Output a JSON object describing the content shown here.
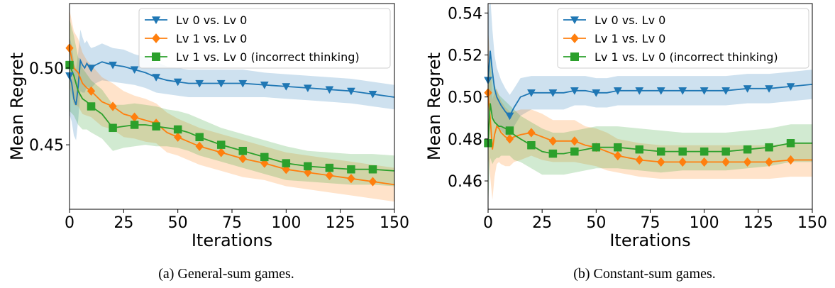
{
  "chart_data": [
    {
      "type": "line",
      "caption": "(a) General-sum games.",
      "xlabel": "Iterations",
      "ylabel": "Mean Regret",
      "xlim": [
        0,
        150
      ],
      "ylim": [
        0.408,
        0.542
      ],
      "xticks": [
        0,
        25,
        50,
        75,
        100,
        125,
        150
      ],
      "yticks": [
        0.45,
        0.5
      ],
      "ytick_labels": [
        "0.45",
        "0.50"
      ],
      "legend_position": "top-right",
      "grid": false,
      "series": [
        {
          "name": "Lv 0 vs. Lv 0",
          "color": "#1f77b4",
          "marker": "triangle-down",
          "x": [
            0,
            1,
            2,
            3,
            4,
            5,
            6,
            7,
            8,
            9,
            10,
            12,
            15,
            20,
            25,
            30,
            35,
            40,
            45,
            50,
            55,
            60,
            70,
            80,
            90,
            100,
            110,
            120,
            130,
            140,
            150
          ],
          "y": [
            0.495,
            0.49,
            0.48,
            0.476,
            0.488,
            0.505,
            0.502,
            0.5,
            0.503,
            0.501,
            0.5,
            0.502,
            0.504,
            0.502,
            0.501,
            0.499,
            0.497,
            0.494,
            0.492,
            0.491,
            0.49,
            0.49,
            0.49,
            0.49,
            0.489,
            0.488,
            0.487,
            0.486,
            0.485,
            0.483,
            0.481
          ],
          "band": [
            0.025,
            0.025,
            0.024,
            0.023,
            0.022,
            0.02,
            0.018,
            0.016,
            0.015,
            0.014,
            0.013,
            0.012,
            0.012,
            0.011,
            0.011,
            0.01,
            0.01,
            0.01,
            0.009,
            0.009,
            0.009,
            0.009,
            0.009,
            0.009,
            0.008,
            0.008,
            0.008,
            0.008,
            0.008,
            0.008,
            0.008
          ],
          "marker_x": [
            0,
            10,
            20,
            30,
            40,
            50,
            60,
            70,
            80,
            90,
            100,
            110,
            120,
            130,
            140
          ]
        },
        {
          "name": "Lv 1 vs. Lv 0",
          "color": "#ff7f0e",
          "marker": "diamond",
          "x": [
            0,
            2,
            4,
            6,
            8,
            10,
            15,
            20,
            25,
            30,
            35,
            40,
            45,
            50,
            55,
            60,
            70,
            80,
            90,
            100,
            110,
            120,
            130,
            140,
            150
          ],
          "y": [
            0.513,
            0.5,
            0.497,
            0.49,
            0.487,
            0.485,
            0.478,
            0.475,
            0.47,
            0.468,
            0.466,
            0.464,
            0.458,
            0.455,
            0.452,
            0.449,
            0.445,
            0.441,
            0.438,
            0.434,
            0.432,
            0.43,
            0.428,
            0.426,
            0.424
          ],
          "band": [
            0.025,
            0.024,
            0.022,
            0.02,
            0.018,
            0.017,
            0.016,
            0.015,
            0.015,
            0.014,
            0.014,
            0.013,
            0.013,
            0.012,
            0.012,
            0.012,
            0.012,
            0.012,
            0.011,
            0.011,
            0.011,
            0.011,
            0.011,
            0.011,
            0.011
          ],
          "marker_x": [
            0,
            10,
            20,
            30,
            40,
            50,
            60,
            70,
            80,
            90,
            100,
            110,
            120,
            130,
            140
          ]
        },
        {
          "name": "Lv 1 vs. Lv 0 (incorrect thinking)",
          "color": "#2ca02c",
          "marker": "square",
          "x": [
            0,
            2,
            4,
            6,
            8,
            10,
            15,
            20,
            25,
            30,
            35,
            40,
            45,
            50,
            55,
            60,
            70,
            80,
            90,
            100,
            110,
            120,
            130,
            140,
            150
          ],
          "y": [
            0.502,
            0.495,
            0.485,
            0.48,
            0.478,
            0.475,
            0.47,
            0.461,
            0.462,
            0.463,
            0.463,
            0.462,
            0.461,
            0.46,
            0.458,
            0.455,
            0.45,
            0.446,
            0.442,
            0.438,
            0.436,
            0.435,
            0.434,
            0.434,
            0.433
          ],
          "band": [
            0.03,
            0.026,
            0.022,
            0.02,
            0.018,
            0.017,
            0.016,
            0.015,
            0.014,
            0.014,
            0.013,
            0.013,
            0.012,
            0.012,
            0.012,
            0.012,
            0.011,
            0.011,
            0.011,
            0.011,
            0.01,
            0.01,
            0.01,
            0.01,
            0.01
          ],
          "marker_x": [
            0,
            10,
            20,
            30,
            40,
            50,
            60,
            70,
            80,
            90,
            100,
            110,
            120,
            130,
            140
          ]
        }
      ]
    },
    {
      "type": "line",
      "caption": "(b) Constant-sum games.",
      "xlabel": "Iterations",
      "ylabel": "Mean Regret",
      "xlim": [
        0,
        150
      ],
      "ylim": [
        0.4465,
        0.5445
      ],
      "xticks": [
        0,
        25,
        50,
        75,
        100,
        125,
        150
      ],
      "yticks": [
        0.46,
        0.48,
        0.5,
        0.52,
        0.54
      ],
      "ytick_labels": [
        "0.46",
        "0.48",
        "0.50",
        "0.52",
        "0.54"
      ],
      "legend_position": "top-right",
      "grid": false,
      "series": [
        {
          "name": "Lv 0 vs. Lv 0",
          "color": "#1f77b4",
          "marker": "triangle-down",
          "x": [
            0,
            1,
            2,
            3,
            4,
            5,
            6,
            8,
            10,
            12,
            15,
            20,
            25,
            30,
            35,
            40,
            45,
            50,
            55,
            60,
            70,
            80,
            90,
            100,
            110,
            120,
            130,
            140,
            150
          ],
          "y": [
            0.508,
            0.522,
            0.512,
            0.504,
            0.5,
            0.498,
            0.496,
            0.493,
            0.491,
            0.495,
            0.5,
            0.502,
            0.502,
            0.502,
            0.502,
            0.503,
            0.503,
            0.502,
            0.502,
            0.503,
            0.503,
            0.503,
            0.503,
            0.503,
            0.503,
            0.504,
            0.504,
            0.505,
            0.506
          ],
          "band": [
            0.03,
            0.026,
            0.02,
            0.016,
            0.014,
            0.013,
            0.012,
            0.011,
            0.01,
            0.009,
            0.009,
            0.008,
            0.008,
            0.008,
            0.008,
            0.007,
            0.007,
            0.007,
            0.007,
            0.007,
            0.007,
            0.007,
            0.007,
            0.007,
            0.007,
            0.007,
            0.007,
            0.007,
            0.007
          ],
          "marker_x": [
            0,
            10,
            20,
            30,
            40,
            50,
            60,
            70,
            80,
            90,
            100,
            110,
            120,
            130,
            140
          ]
        },
        {
          "name": "Lv 1 vs. Lv 0",
          "color": "#ff7f0e",
          "marker": "diamond",
          "x": [
            0,
            1,
            2,
            3,
            4,
            5,
            6,
            8,
            10,
            12,
            15,
            20,
            25,
            30,
            35,
            40,
            45,
            50,
            55,
            60,
            70,
            80,
            90,
            100,
            110,
            120,
            130,
            140,
            150
          ],
          "y": [
            0.502,
            0.49,
            0.475,
            0.482,
            0.486,
            0.485,
            0.483,
            0.481,
            0.48,
            0.481,
            0.482,
            0.483,
            0.481,
            0.479,
            0.479,
            0.479,
            0.477,
            0.476,
            0.474,
            0.472,
            0.47,
            0.469,
            0.469,
            0.469,
            0.469,
            0.469,
            0.469,
            0.47,
            0.47
          ],
          "band": [
            0.03,
            0.028,
            0.024,
            0.02,
            0.018,
            0.016,
            0.015,
            0.014,
            0.013,
            0.012,
            0.012,
            0.011,
            0.011,
            0.01,
            0.01,
            0.01,
            0.009,
            0.009,
            0.009,
            0.008,
            0.008,
            0.008,
            0.008,
            0.008,
            0.008,
            0.008,
            0.008,
            0.008,
            0.008
          ],
          "marker_x": [
            0,
            10,
            20,
            30,
            40,
            50,
            60,
            70,
            80,
            90,
            100,
            110,
            120,
            130,
            140
          ]
        },
        {
          "name": "Lv 1 vs. Lv 0 (incorrect thinking)",
          "color": "#2ca02c",
          "marker": "square",
          "x": [
            0,
            1,
            2,
            3,
            4,
            5,
            6,
            8,
            10,
            12,
            15,
            20,
            25,
            30,
            35,
            40,
            45,
            50,
            55,
            60,
            70,
            80,
            90,
            100,
            110,
            120,
            130,
            140,
            150
          ],
          "y": [
            0.478,
            0.497,
            0.49,
            0.488,
            0.487,
            0.486,
            0.486,
            0.485,
            0.484,
            0.482,
            0.48,
            0.477,
            0.474,
            0.473,
            0.473,
            0.474,
            0.475,
            0.476,
            0.476,
            0.476,
            0.475,
            0.474,
            0.474,
            0.474,
            0.474,
            0.475,
            0.476,
            0.478,
            0.478
          ],
          "band": [
            0.03,
            0.026,
            0.022,
            0.018,
            0.016,
            0.015,
            0.014,
            0.013,
            0.012,
            0.012,
            0.011,
            0.011,
            0.011,
            0.01,
            0.01,
            0.01,
            0.01,
            0.01,
            0.01,
            0.01,
            0.01,
            0.01,
            0.009,
            0.009,
            0.009,
            0.009,
            0.009,
            0.009,
            0.009
          ],
          "marker_x": [
            0,
            10,
            20,
            30,
            40,
            50,
            60,
            70,
            80,
            90,
            100,
            110,
            120,
            130,
            140
          ]
        }
      ]
    }
  ]
}
